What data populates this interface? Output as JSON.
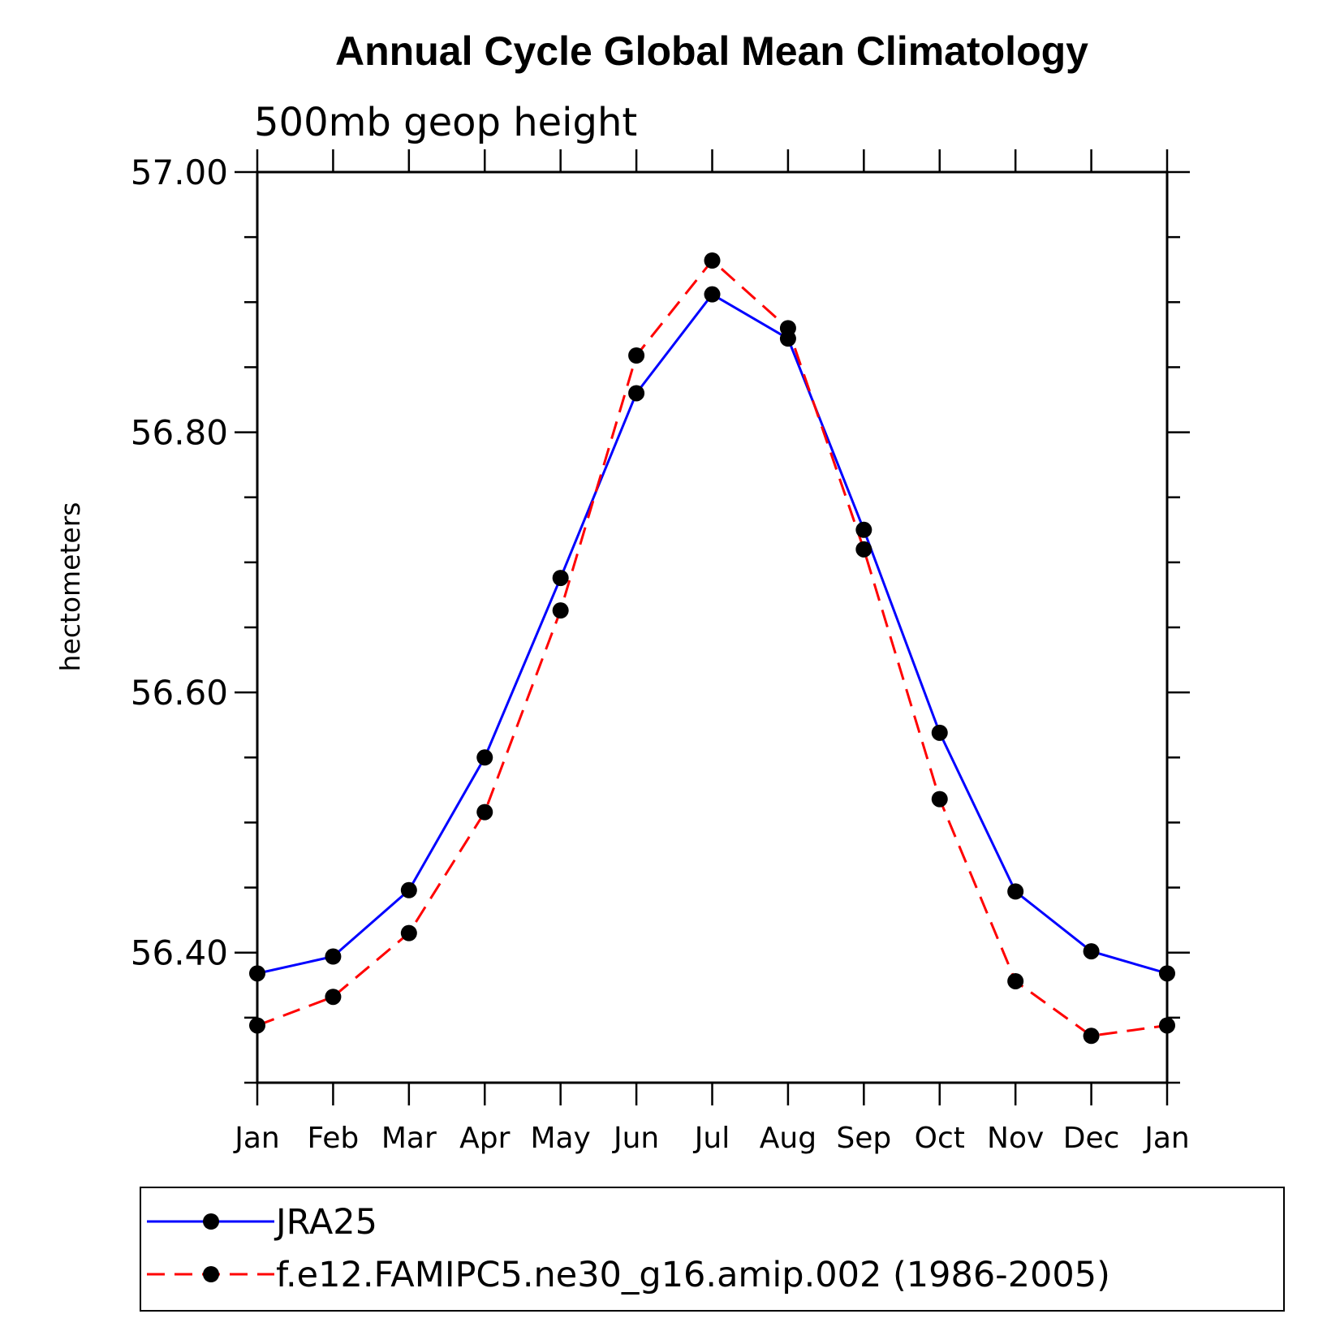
{
  "chart_data": {
    "type": "line",
    "title": "Annual Cycle Global Mean Climatology",
    "subtitle": "500mb geop height",
    "xlabel": "",
    "ylabel": "hectometers",
    "categories": [
      "Jan",
      "Feb",
      "Mar",
      "Apr",
      "May",
      "Jun",
      "Jul",
      "Aug",
      "Sep",
      "Oct",
      "Nov",
      "Dec",
      "Jan"
    ],
    "ylim": [
      56.3,
      57.0
    ],
    "yticks": [
      "57.00",
      "56.80",
      "56.60",
      "56.40"
    ],
    "ytick_values": [
      57.0,
      56.8,
      56.6,
      56.4
    ],
    "series": [
      {
        "name": "JRA25",
        "color": "#0000ff",
        "line_style": "solid",
        "marker": "filled-circle",
        "values": [
          56.384,
          56.397,
          56.448,
          56.55,
          56.688,
          56.83,
          56.906,
          56.872,
          56.725,
          56.569,
          56.447,
          56.401,
          56.384
        ]
      },
      {
        "name": "f.e12.FAMIPC5.ne30_g16.amip.002 (1986-2005)",
        "color": "#ff0000",
        "line_style": "dashed",
        "marker": "filled-circle",
        "values": [
          56.344,
          56.366,
          56.415,
          56.508,
          56.663,
          56.859,
          56.932,
          56.88,
          56.71,
          56.518,
          56.378,
          56.336,
          56.344
        ]
      }
    ],
    "legend_position": "bottom",
    "grid": false
  }
}
